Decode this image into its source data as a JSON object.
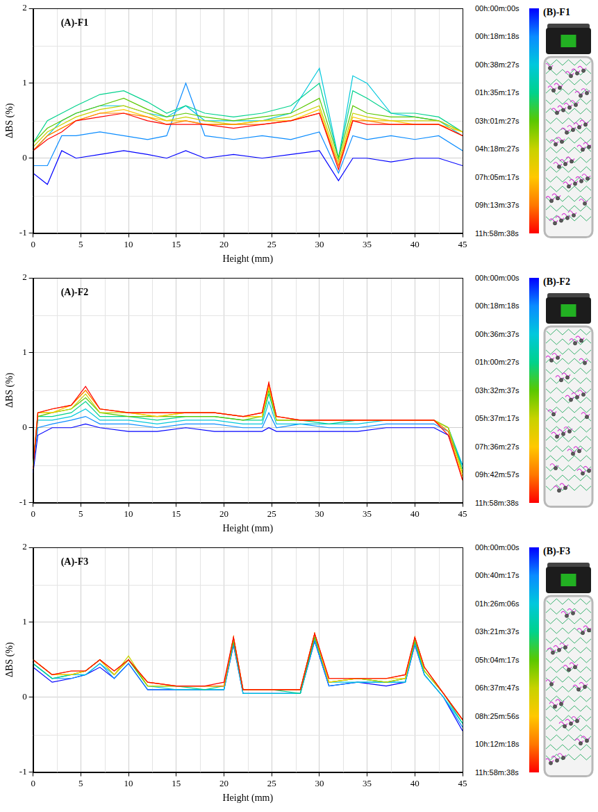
{
  "chart_data": [
    {
      "type": "line",
      "title": "(A)-F1",
      "x_label": "Height (mm)",
      "y_label": "ΔBS (%)",
      "annotations": [
        "(B)-F1"
      ],
      "x": [
        0,
        1.5,
        3,
        4.5,
        7,
        9.5,
        12,
        14,
        16,
        18,
        21,
        24,
        27,
        30,
        32,
        33.5,
        35,
        37.5,
        40,
        42.5,
        45
      ],
      "xlim": [
        0,
        45
      ],
      "xticks": [
        0,
        5,
        10,
        15,
        20,
        25,
        30,
        35,
        40,
        45
      ],
      "ylim": [
        -1,
        2
      ],
      "yticks": [
        -1,
        0,
        1,
        2
      ],
      "grid": true,
      "legend": "right",
      "marker": "none",
      "line_style": "solid",
      "series": [
        {
          "name": "00h:00m:00s",
          "color": "#0000ff",
          "values": [
            -0.2,
            -0.35,
            0.1,
            0.0,
            0.05,
            0.1,
            0.05,
            0.0,
            0.1,
            0.0,
            0.05,
            0.0,
            0.05,
            0.1,
            -0.3,
            0.0,
            0.0,
            -0.05,
            0.0,
            0.0,
            -0.1
          ]
        },
        {
          "name": "00h:18m:18s",
          "color": "#0a8cff",
          "values": [
            -0.1,
            -0.1,
            0.3,
            0.3,
            0.35,
            0.3,
            0.25,
            0.3,
            1.0,
            0.3,
            0.25,
            0.3,
            0.25,
            0.35,
            -0.2,
            0.3,
            0.25,
            0.3,
            0.25,
            0.3,
            0.1
          ]
        },
        {
          "name": "00h:38m:27s",
          "color": "#00c8dc",
          "values": [
            0.1,
            0.3,
            0.5,
            0.6,
            0.7,
            0.7,
            0.6,
            0.55,
            0.7,
            0.5,
            0.5,
            0.5,
            0.6,
            1.2,
            0.0,
            1.1,
            1.0,
            0.6,
            0.55,
            0.5,
            0.3
          ]
        },
        {
          "name": "01h:35m:17s",
          "color": "#00d28c",
          "values": [
            0.2,
            0.5,
            0.6,
            0.7,
            0.85,
            0.9,
            0.75,
            0.6,
            0.7,
            0.6,
            0.55,
            0.6,
            0.7,
            1.0,
            0.0,
            0.9,
            0.8,
            0.6,
            0.6,
            0.55,
            0.35
          ]
        },
        {
          "name": "03h:01m:27s",
          "color": "#5ac800",
          "values": [
            0.2,
            0.4,
            0.5,
            0.6,
            0.7,
            0.8,
            0.65,
            0.55,
            0.6,
            0.55,
            0.5,
            0.55,
            0.6,
            0.8,
            0.0,
            0.7,
            0.6,
            0.55,
            0.55,
            0.5,
            0.35
          ]
        },
        {
          "name": "04h:18m:27s",
          "color": "#c8d200",
          "values": [
            0.15,
            0.35,
            0.45,
            0.55,
            0.65,
            0.7,
            0.6,
            0.5,
            0.55,
            0.5,
            0.45,
            0.5,
            0.55,
            0.7,
            -0.05,
            0.6,
            0.55,
            0.5,
            0.5,
            0.5,
            0.35
          ]
        },
        {
          "name": "07h:05m:17s",
          "color": "#ffc800",
          "values": [
            0.1,
            0.3,
            0.4,
            0.5,
            0.6,
            0.65,
            0.55,
            0.5,
            0.5,
            0.45,
            0.45,
            0.5,
            0.5,
            0.65,
            -0.1,
            0.55,
            0.5,
            0.5,
            0.45,
            0.45,
            0.35
          ]
        },
        {
          "name": "09h:13m:37s",
          "color": "#ff7800",
          "values": [
            0.1,
            0.3,
            0.4,
            0.5,
            0.6,
            0.6,
            0.55,
            0.45,
            0.5,
            0.45,
            0.45,
            0.45,
            0.5,
            0.6,
            -0.1,
            0.5,
            0.5,
            0.45,
            0.45,
            0.45,
            0.3
          ]
        },
        {
          "name": "11h:58m:38s",
          "color": "#ff0000",
          "values": [
            0.1,
            0.25,
            0.35,
            0.5,
            0.55,
            0.6,
            0.5,
            0.45,
            0.45,
            0.45,
            0.4,
            0.45,
            0.5,
            0.6,
            -0.15,
            0.5,
            0.45,
            0.45,
            0.45,
            0.45,
            0.3
          ]
        }
      ]
    },
    {
      "type": "line",
      "title": "(A)-F2",
      "x_label": "Height (mm)",
      "y_label": "ΔBS (%)",
      "annotations": [
        "(B)-F2"
      ],
      "x": [
        0,
        0.5,
        2,
        4,
        5.5,
        7,
        10,
        13,
        16,
        19,
        22,
        24,
        24.7,
        25.5,
        28,
        31,
        34,
        37,
        40,
        42,
        43.5,
        45
      ],
      "xlim": [
        0,
        45
      ],
      "xticks": [
        0,
        5,
        10,
        15,
        20,
        25,
        30,
        35,
        40,
        45
      ],
      "ylim": [
        -1,
        2
      ],
      "yticks": [
        -1,
        0,
        1,
        2
      ],
      "grid": true,
      "legend": "right",
      "marker": "none",
      "line_style": "solid",
      "series": [
        {
          "name": "00h:00m:00s",
          "color": "#0000ff",
          "values": [
            -0.6,
            -0.1,
            0.0,
            0.0,
            0.05,
            0.0,
            -0.05,
            -0.05,
            0.0,
            -0.05,
            -0.05,
            -0.05,
            0.0,
            -0.05,
            -0.05,
            -0.05,
            -0.05,
            0.0,
            0.0,
            0.0,
            -0.1,
            -0.5
          ]
        },
        {
          "name": "00h:18m:18s",
          "color": "#0a8cff",
          "values": [
            -0.55,
            0.0,
            0.05,
            0.1,
            0.15,
            0.05,
            0.05,
            0.0,
            0.05,
            0.05,
            0.0,
            0.0,
            0.2,
            0.0,
            0.05,
            0.0,
            0.0,
            0.05,
            0.05,
            0.05,
            -0.05,
            -0.5
          ]
        },
        {
          "name": "00h:36m:37s",
          "color": "#00c8dc",
          "values": [
            -0.5,
            0.1,
            0.1,
            0.15,
            0.25,
            0.1,
            0.1,
            0.05,
            0.1,
            0.1,
            0.05,
            0.05,
            0.35,
            0.05,
            0.05,
            0.05,
            0.05,
            0.1,
            0.1,
            0.1,
            0.0,
            -0.5
          ]
        },
        {
          "name": "01h:00m:27s",
          "color": "#00d28c",
          "values": [
            -0.5,
            0.15,
            0.15,
            0.2,
            0.35,
            0.15,
            0.15,
            0.1,
            0.15,
            0.15,
            0.1,
            0.1,
            0.45,
            0.1,
            0.1,
            0.05,
            0.1,
            0.1,
            0.1,
            0.1,
            0.0,
            -0.55
          ]
        },
        {
          "name": "03h:32m:37s",
          "color": "#5ac800",
          "values": [
            -0.5,
            0.15,
            0.2,
            0.25,
            0.4,
            0.2,
            0.15,
            0.15,
            0.15,
            0.15,
            0.1,
            0.15,
            0.5,
            0.1,
            0.1,
            0.1,
            0.1,
            0.1,
            0.1,
            0.1,
            0.0,
            -0.6
          ]
        },
        {
          "name": "05h:37m:17s",
          "color": "#c8d200",
          "values": [
            -0.5,
            0.2,
            0.2,
            0.25,
            0.45,
            0.2,
            0.2,
            0.15,
            0.2,
            0.2,
            0.15,
            0.15,
            0.55,
            0.1,
            0.1,
            0.1,
            0.1,
            0.1,
            0.1,
            0.1,
            0.0,
            -0.6
          ]
        },
        {
          "name": "07h:36m:27s",
          "color": "#ffc800",
          "values": [
            -0.5,
            0.2,
            0.2,
            0.3,
            0.5,
            0.25,
            0.2,
            0.15,
            0.2,
            0.2,
            0.15,
            0.15,
            0.55,
            0.15,
            0.1,
            0.1,
            0.1,
            0.1,
            0.1,
            0.1,
            -0.05,
            -0.65
          ]
        },
        {
          "name": "09h:42m:57s",
          "color": "#ff7800",
          "values": [
            -0.55,
            0.2,
            0.25,
            0.3,
            0.5,
            0.25,
            0.2,
            0.2,
            0.2,
            0.2,
            0.15,
            0.2,
            0.6,
            0.15,
            0.1,
            0.1,
            0.1,
            0.1,
            0.1,
            0.1,
            -0.05,
            -0.7
          ]
        },
        {
          "name": "11h:58m:38s",
          "color": "#ff0000",
          "values": [
            -0.55,
            0.2,
            0.25,
            0.3,
            0.55,
            0.25,
            0.2,
            0.2,
            0.2,
            0.2,
            0.15,
            0.2,
            0.6,
            0.15,
            0.1,
            0.1,
            0.1,
            0.1,
            0.1,
            0.1,
            -0.1,
            -0.7
          ]
        }
      ]
    },
    {
      "type": "line",
      "title": "(A)-F3",
      "x_label": "Height (mm)",
      "y_label": "ΔBS (%)",
      "annotations": [
        "(B)-F3"
      ],
      "x": [
        0,
        2,
        4,
        5.5,
        7,
        8.5,
        10,
        12,
        15,
        18,
        20,
        21,
        22,
        25,
        28,
        29.5,
        31,
        34,
        37,
        39,
        40,
        41,
        43,
        45
      ],
      "xlim": [
        0,
        45
      ],
      "xticks": [
        0,
        5,
        10,
        15,
        20,
        25,
        30,
        35,
        40,
        45
      ],
      "ylim": [
        -1,
        2
      ],
      "yticks": [
        -1,
        0,
        1,
        2
      ],
      "grid": true,
      "legend": "right",
      "marker": "none",
      "line_style": "solid",
      "series": [
        {
          "name": "00h:00m:00s",
          "color": "#0000ff",
          "values": [
            0.4,
            0.2,
            0.25,
            0.3,
            0.4,
            0.25,
            0.45,
            0.1,
            0.1,
            0.1,
            0.1,
            0.7,
            0.05,
            0.05,
            0.05,
            0.75,
            0.15,
            0.2,
            0.15,
            0.2,
            0.7,
            0.3,
            0.0,
            -0.45
          ]
        },
        {
          "name": "00h:40m:17s",
          "color": "#0a8cff",
          "values": [
            0.45,
            0.25,
            0.25,
            0.3,
            0.45,
            0.25,
            0.45,
            0.1,
            0.1,
            0.1,
            0.1,
            0.7,
            0.05,
            0.05,
            0.05,
            0.75,
            0.15,
            0.2,
            0.2,
            0.2,
            0.7,
            0.3,
            0.0,
            -0.4
          ]
        },
        {
          "name": "01h:26m:06s",
          "color": "#00c8dc",
          "values": [
            0.45,
            0.25,
            0.3,
            0.3,
            0.45,
            0.3,
            0.5,
            0.15,
            0.1,
            0.1,
            0.1,
            0.75,
            0.05,
            0.05,
            0.05,
            0.8,
            0.2,
            0.2,
            0.2,
            0.2,
            0.75,
            0.3,
            0.0,
            -0.35
          ]
        },
        {
          "name": "03h:21m:37s",
          "color": "#00d28c",
          "values": [
            0.45,
            0.25,
            0.3,
            0.35,
            0.5,
            0.3,
            0.5,
            0.15,
            0.15,
            0.1,
            0.15,
            0.75,
            0.1,
            0.1,
            0.05,
            0.8,
            0.2,
            0.25,
            0.2,
            0.25,
            0.75,
            0.35,
            0.05,
            -0.35
          ]
        },
        {
          "name": "05h:04m:17s",
          "color": "#5ac800",
          "values": [
            0.5,
            0.3,
            0.3,
            0.35,
            0.5,
            0.3,
            0.5,
            0.15,
            0.15,
            0.15,
            0.15,
            0.75,
            0.1,
            0.1,
            0.1,
            0.8,
            0.2,
            0.25,
            0.2,
            0.25,
            0.75,
            0.35,
            0.05,
            -0.3
          ]
        },
        {
          "name": "06h:37m:47s",
          "color": "#c8d200",
          "values": [
            0.5,
            0.3,
            0.3,
            0.35,
            0.5,
            0.3,
            0.55,
            0.15,
            0.15,
            0.15,
            0.15,
            0.8,
            0.1,
            0.1,
            0.1,
            0.85,
            0.2,
            0.25,
            0.2,
            0.25,
            0.8,
            0.35,
            0.05,
            -0.3
          ]
        },
        {
          "name": "08h:25m:56s",
          "color": "#ffc800",
          "values": [
            0.5,
            0.3,
            0.3,
            0.35,
            0.5,
            0.3,
            0.5,
            0.2,
            0.15,
            0.15,
            0.15,
            0.8,
            0.1,
            0.1,
            0.1,
            0.85,
            0.2,
            0.25,
            0.25,
            0.25,
            0.8,
            0.4,
            0.05,
            -0.3
          ]
        },
        {
          "name": "10h:12m:18s",
          "color": "#ff7800",
          "values": [
            0.5,
            0.3,
            0.35,
            0.35,
            0.5,
            0.35,
            0.5,
            0.2,
            0.15,
            0.15,
            0.15,
            0.8,
            0.1,
            0.1,
            0.1,
            0.85,
            0.25,
            0.25,
            0.25,
            0.3,
            0.8,
            0.4,
            0.05,
            -0.3
          ]
        },
        {
          "name": "11h:58m:38s",
          "color": "#ff0000",
          "values": [
            0.5,
            0.3,
            0.35,
            0.35,
            0.5,
            0.35,
            0.5,
            0.2,
            0.15,
            0.15,
            0.2,
            0.8,
            0.1,
            0.1,
            0.1,
            0.85,
            0.25,
            0.25,
            0.25,
            0.3,
            0.8,
            0.4,
            0.05,
            -0.3
          ]
        }
      ]
    }
  ]
}
